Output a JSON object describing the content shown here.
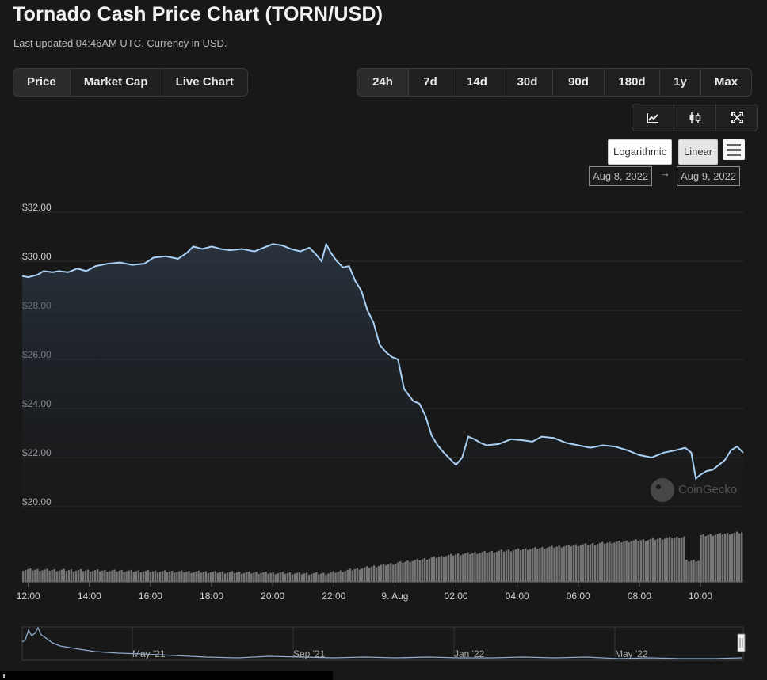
{
  "page": {
    "title": "Tornado Cash Price Chart (TORN/USD)",
    "subtitle": "Last updated 04:46AM UTC. Currency in USD."
  },
  "type_tabs": [
    {
      "label": "Price",
      "active": true
    },
    {
      "label": "Market Cap",
      "active": false
    },
    {
      "label": "Live Chart",
      "active": false
    }
  ],
  "range_tabs": [
    {
      "label": "24h",
      "active": true
    },
    {
      "label": "7d",
      "active": false
    },
    {
      "label": "14d",
      "active": false
    },
    {
      "label": "30d",
      "active": false
    },
    {
      "label": "90d",
      "active": false
    },
    {
      "label": "180d",
      "active": false
    },
    {
      "label": "1y",
      "active": false
    },
    {
      "label": "Max",
      "active": false
    }
  ],
  "tools": {
    "icons": [
      "line-chart-icon",
      "candlestick-icon",
      "fullscreen-icon"
    ]
  },
  "scale": {
    "logarithmic": "Logarithmic",
    "linear": "Linear",
    "selected": "Linear"
  },
  "date_range": {
    "from": "Aug 8, 2022",
    "arrow": "→",
    "to": "Aug 9, 2022"
  },
  "watermark": "CoinGecko",
  "colors": {
    "line": "#a9d0f5",
    "volume": "#8f8f8f",
    "navigator": "#8faacb",
    "background": "#181818"
  },
  "chart_data": {
    "type": "line",
    "title": "",
    "xlabel": "",
    "ylabel": "",
    "ylim": [
      20,
      32
    ],
    "y_ticks": [
      "$32.00",
      "$30.00",
      "$28.00",
      "$26.00",
      "$24.00",
      "$22.00",
      "$20.00"
    ],
    "x_ticks": [
      "12:00",
      "14:00",
      "16:00",
      "18:00",
      "20:00",
      "22:00",
      "9. Aug",
      "02:00",
      "04:00",
      "06:00",
      "08:00",
      "10:00"
    ],
    "x_hours_start": 11.8,
    "x_hours_end": 34.6,
    "series": [
      {
        "values": [
          [
            11.8,
            29.4
          ],
          [
            12.0,
            29.35
          ],
          [
            12.3,
            29.45
          ],
          [
            12.5,
            29.6
          ],
          [
            12.8,
            29.55
          ],
          [
            13.0,
            29.6
          ],
          [
            13.3,
            29.55
          ],
          [
            13.6,
            29.7
          ],
          [
            13.9,
            29.6
          ],
          [
            14.2,
            29.8
          ],
          [
            14.6,
            29.9
          ],
          [
            15.0,
            29.95
          ],
          [
            15.4,
            29.85
          ],
          [
            15.8,
            29.9
          ],
          [
            16.1,
            30.15
          ],
          [
            16.5,
            30.2
          ],
          [
            16.9,
            30.1
          ],
          [
            17.2,
            30.35
          ],
          [
            17.4,
            30.6
          ],
          [
            17.7,
            30.5
          ],
          [
            18.0,
            30.6
          ],
          [
            18.3,
            30.5
          ],
          [
            18.6,
            30.45
          ],
          [
            19.0,
            30.5
          ],
          [
            19.4,
            30.4
          ],
          [
            19.7,
            30.55
          ],
          [
            20.0,
            30.7
          ],
          [
            20.3,
            30.65
          ],
          [
            20.6,
            30.5
          ],
          [
            20.9,
            30.4
          ],
          [
            21.2,
            30.55
          ],
          [
            21.4,
            30.3
          ],
          [
            21.6,
            30.0
          ],
          [
            21.75,
            30.7
          ],
          [
            21.9,
            30.35
          ],
          [
            22.1,
            30.0
          ],
          [
            22.3,
            29.75
          ],
          [
            22.5,
            29.8
          ],
          [
            22.7,
            29.2
          ],
          [
            22.9,
            28.8
          ],
          [
            23.1,
            28.0
          ],
          [
            23.3,
            27.5
          ],
          [
            23.5,
            26.6
          ],
          [
            23.7,
            26.3
          ],
          [
            23.9,
            26.1
          ],
          [
            24.1,
            26.0
          ],
          [
            24.3,
            24.8
          ],
          [
            24.6,
            24.3
          ],
          [
            24.8,
            24.2
          ],
          [
            25.0,
            23.7
          ],
          [
            25.2,
            22.9
          ],
          [
            25.4,
            22.5
          ],
          [
            25.6,
            22.2
          ],
          [
            25.8,
            21.95
          ],
          [
            26.0,
            21.7
          ],
          [
            26.2,
            22.0
          ],
          [
            26.4,
            22.85
          ],
          [
            26.6,
            22.75
          ],
          [
            26.8,
            22.6
          ],
          [
            27.0,
            22.5
          ],
          [
            27.4,
            22.55
          ],
          [
            27.8,
            22.75
          ],
          [
            28.2,
            22.7
          ],
          [
            28.5,
            22.65
          ],
          [
            28.8,
            22.85
          ],
          [
            29.2,
            22.8
          ],
          [
            29.6,
            22.6
          ],
          [
            30.0,
            22.5
          ],
          [
            30.4,
            22.4
          ],
          [
            30.8,
            22.5
          ],
          [
            31.2,
            22.45
          ],
          [
            31.6,
            22.3
          ],
          [
            32.0,
            22.1
          ],
          [
            32.4,
            22.0
          ],
          [
            32.8,
            22.2
          ],
          [
            33.2,
            22.3
          ],
          [
            33.5,
            22.4
          ],
          [
            33.7,
            22.2
          ],
          [
            33.85,
            21.15
          ],
          [
            34.0,
            21.3
          ],
          [
            34.2,
            21.45
          ],
          [
            34.4,
            21.5
          ],
          [
            34.6,
            21.7
          ],
          [
            34.8,
            21.9
          ],
          [
            35.0,
            22.3
          ],
          [
            35.2,
            22.45
          ],
          [
            35.4,
            22.2
          ]
        ]
      }
    ],
    "navigator": {
      "labels": [
        "May '21",
        "Sep '21",
        "Jan '22",
        "May '22"
      ]
    }
  }
}
